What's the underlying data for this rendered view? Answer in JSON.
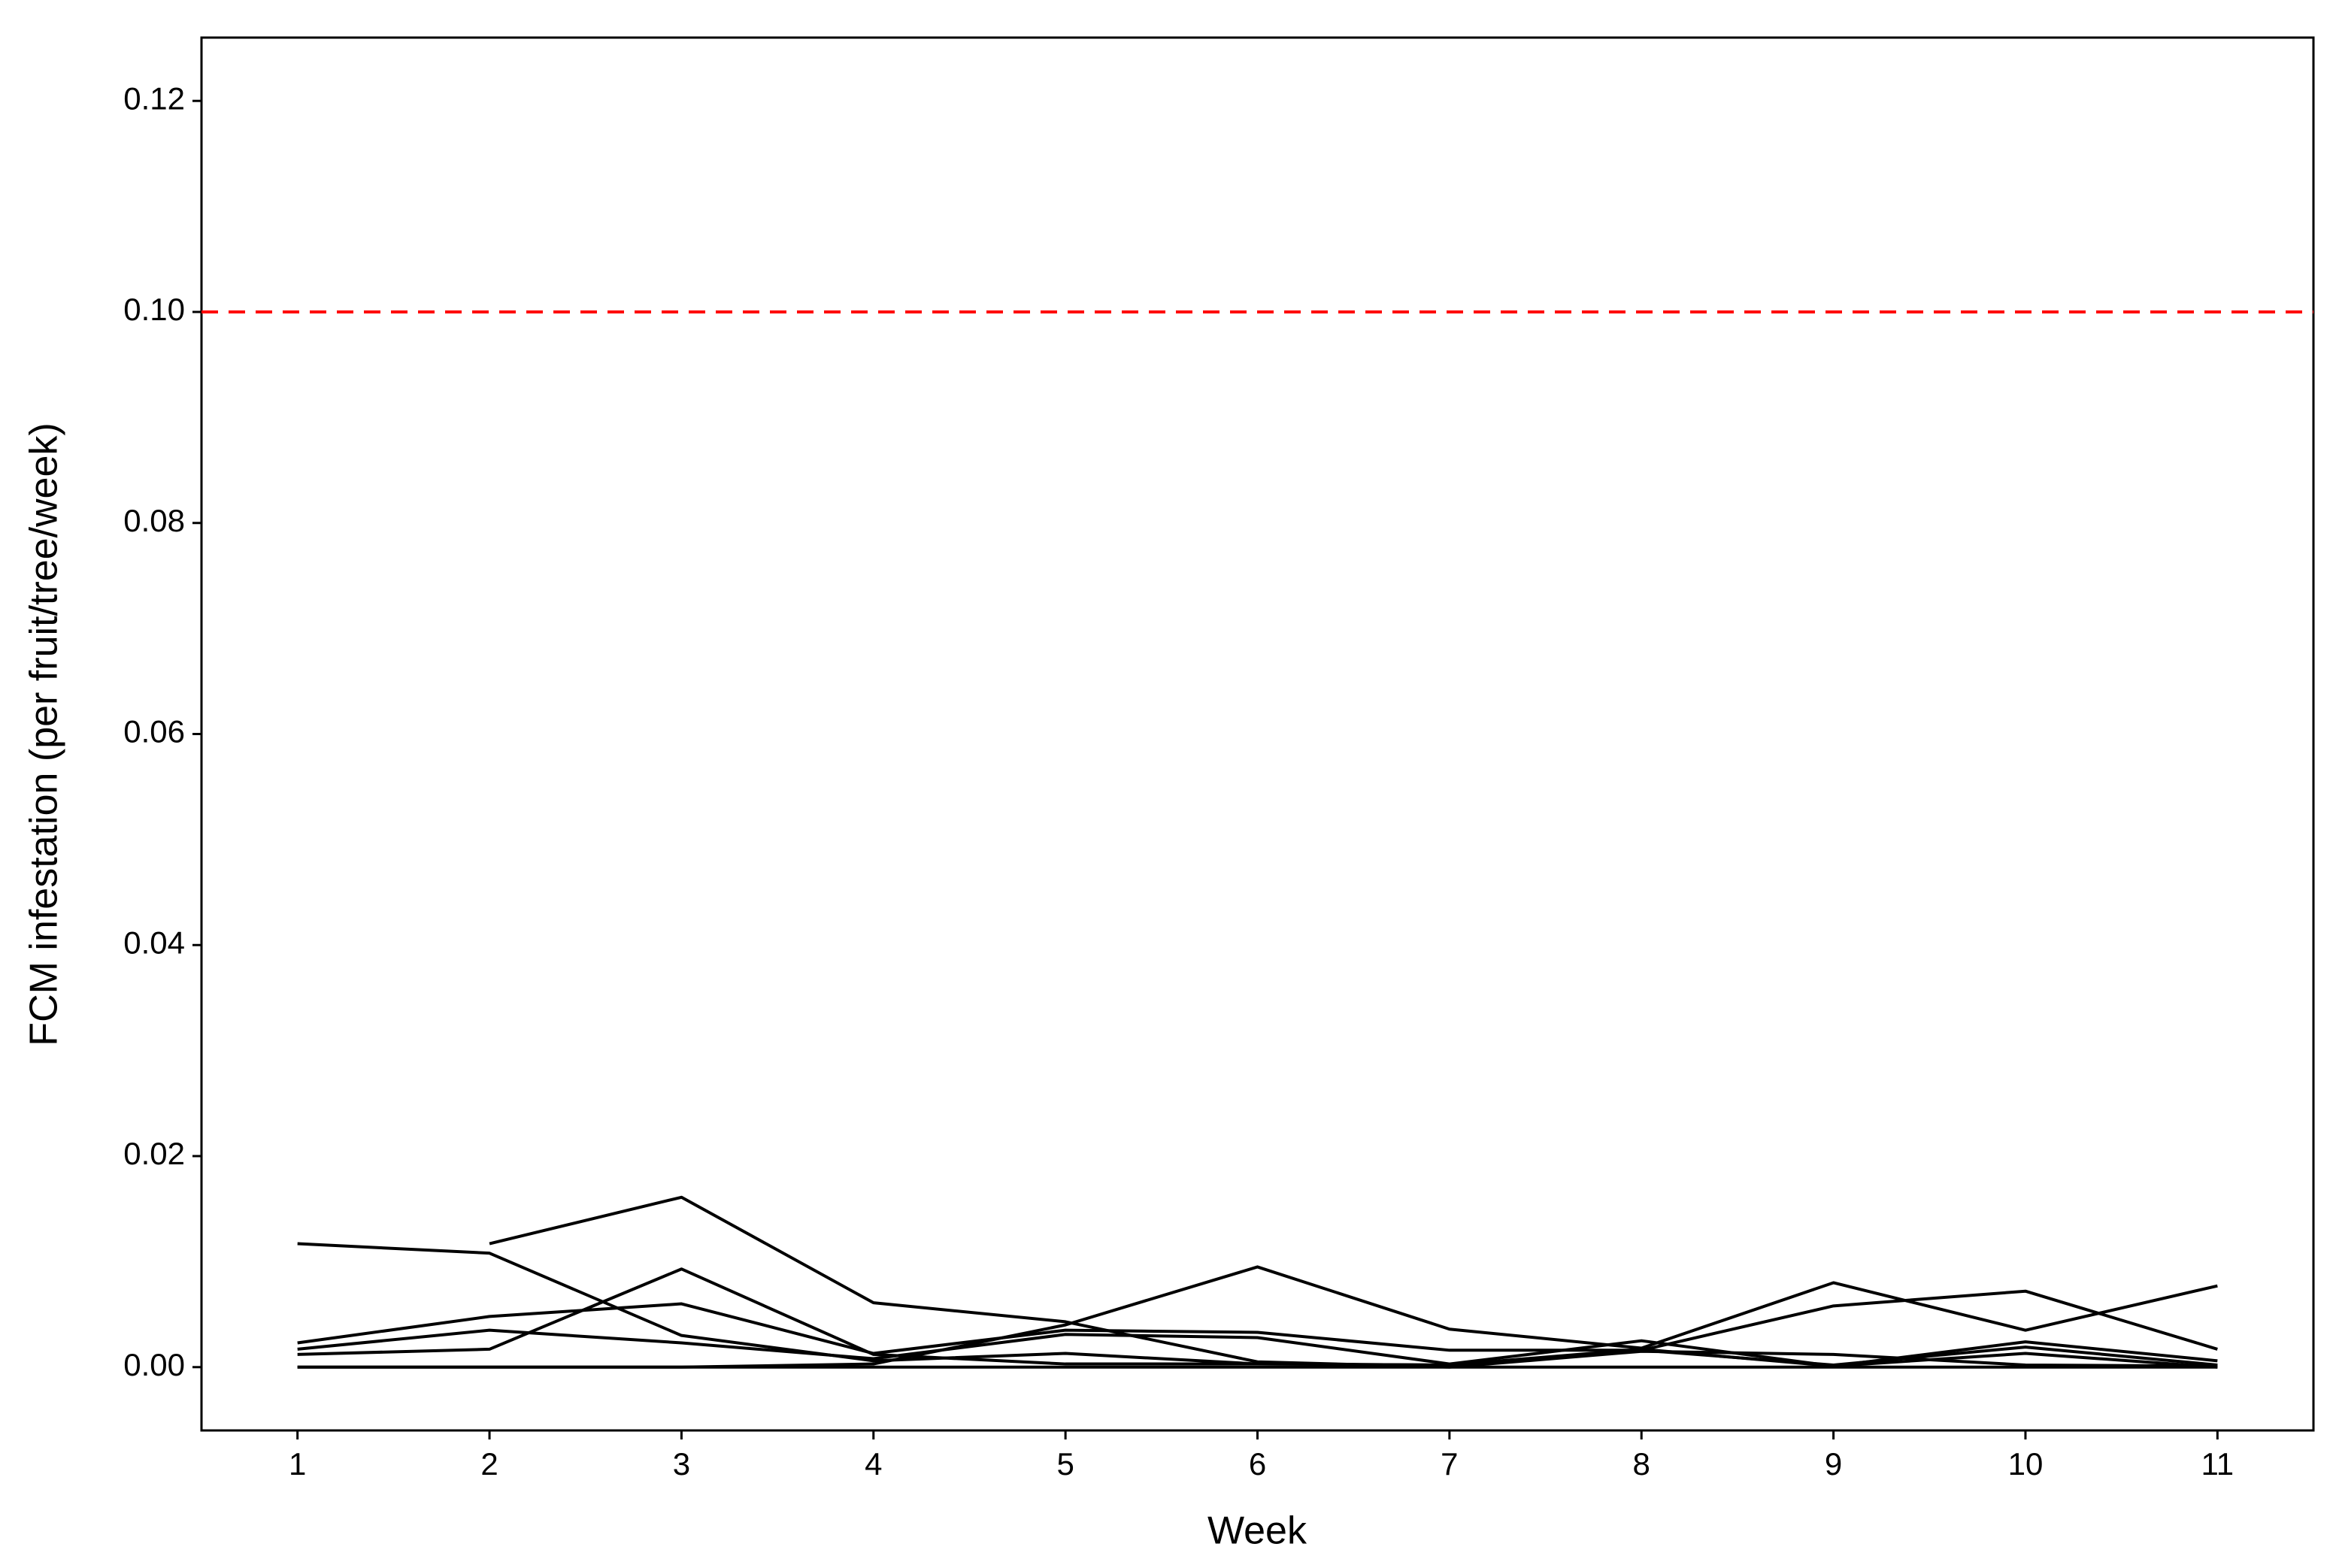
{
  "chart_data": {
    "type": "line",
    "x_label": "Week",
    "y_label": "FCM infestation (per fruit/tree/week)",
    "x": [
      1,
      2,
      3,
      4,
      5,
      6,
      7,
      8,
      9,
      10,
      11
    ],
    "series": [
      {
        "color": "#000000",
        "values": [
          0.0117,
          0.0108,
          0.003,
          0.0006,
          0.0013,
          0.0003,
          0.0002,
          0.0016,
          0.0002,
          0.0019,
          0.0002
        ]
      },
      {
        "color": "#000000",
        "values": [
          null,
          0.0117,
          0.0161,
          0.0061,
          0.0043,
          0.0005,
          0,
          0.0015,
          0.0012,
          0.0002,
          0.0001
        ]
      },
      {
        "color": "#000000",
        "values": [
          0,
          0,
          0,
          0.0003,
          0.004,
          0.0095,
          0.0036,
          0.0018,
          0.008,
          0.0035,
          0.0077
        ]
      },
      {
        "color": "#000000",
        "values": [
          0.0023,
          0.0048,
          0.006,
          0.0013,
          0.0035,
          0.0033,
          0.0016,
          0.0016,
          0.0058,
          0.0072,
          0.0017
        ]
      },
      {
        "color": "#000000",
        "values": [
          0.0017,
          0.0035,
          0.0023,
          0.0008,
          0.0031,
          0.0028,
          0.0003,
          0.0025,
          0.0001,
          0.0024,
          0.0006
        ]
      },
      {
        "color": "#000000",
        "values": [
          0.0012,
          0.0017,
          0.0093,
          0.0012,
          0.0003,
          0.0003,
          0.0002,
          0.0017,
          0.0001,
          0.0013,
          0
        ]
      },
      {
        "color": "#000000",
        "values": [
          0,
          0,
          0,
          0,
          0,
          0,
          0,
          0,
          0,
          0,
          0
        ]
      }
    ],
    "hline": {
      "value": 0.1,
      "color": "#ff0000",
      "dashed": true
    },
    "xlim": [
      0.5,
      11.5
    ],
    "xticks": [
      1,
      2,
      3,
      4,
      5,
      6,
      7,
      8,
      9,
      10,
      11
    ],
    "ylim": [
      -0.006,
      0.126
    ],
    "yticks": [
      {
        "value": 0,
        "label": "0.00"
      },
      {
        "value": 0.02,
        "label": "0.02"
      },
      {
        "value": 0.04,
        "label": "0.04"
      },
      {
        "value": 0.06,
        "label": "0.06"
      },
      {
        "value": 0.08,
        "label": "0.08"
      },
      {
        "value": 0.1,
        "label": "0.10"
      },
      {
        "value": 0.12,
        "label": "0.12"
      }
    ],
    "grid": false
  }
}
